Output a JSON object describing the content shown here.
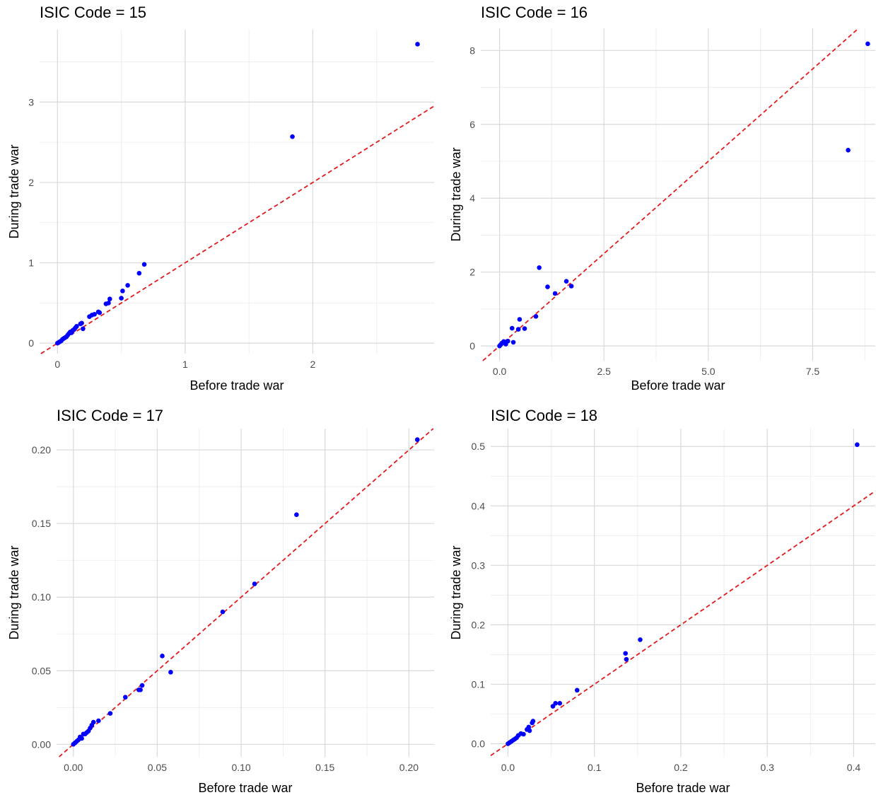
{
  "chart_data": [
    {
      "type": "scatter",
      "title": "ISIC Code =  15",
      "xlabel": "Before trade war",
      "ylabel": "During trade war",
      "xlim": [
        -0.14,
        2.95
      ],
      "ylim": [
        -0.13,
        3.9
      ],
      "xticks": [
        0,
        1,
        2
      ],
      "xtick_labels": [
        "0",
        "1",
        "2"
      ],
      "yticks": [
        0,
        1,
        2,
        3
      ],
      "ytick_labels": [
        "0",
        "1",
        "2",
        "3"
      ],
      "grid": true,
      "reference_line": "y = x",
      "colors": {
        "points": "#0000ff",
        "reference_line": "#e31a1c"
      },
      "points": [
        [
          0.0,
          0.0
        ],
        [
          0.01,
          0.01
        ],
        [
          0.02,
          0.02
        ],
        [
          0.03,
          0.03
        ],
        [
          0.04,
          0.05
        ],
        [
          0.05,
          0.06
        ],
        [
          0.06,
          0.07
        ],
        [
          0.07,
          0.08
        ],
        [
          0.08,
          0.1
        ],
        [
          0.09,
          0.12
        ],
        [
          0.1,
          0.14
        ],
        [
          0.11,
          0.13
        ],
        [
          0.12,
          0.16
        ],
        [
          0.13,
          0.17
        ],
        [
          0.14,
          0.19
        ],
        [
          0.15,
          0.21
        ],
        [
          0.18,
          0.24
        ],
        [
          0.19,
          0.25
        ],
        [
          0.2,
          0.18
        ],
        [
          0.25,
          0.33
        ],
        [
          0.27,
          0.35
        ],
        [
          0.29,
          0.36
        ],
        [
          0.32,
          0.39
        ],
        [
          0.33,
          0.38
        ],
        [
          0.38,
          0.49
        ],
        [
          0.4,
          0.5
        ],
        [
          0.41,
          0.55
        ],
        [
          0.5,
          0.56
        ],
        [
          0.51,
          0.65
        ],
        [
          0.55,
          0.72
        ],
        [
          0.64,
          0.87
        ],
        [
          0.68,
          0.98
        ],
        [
          1.84,
          2.57
        ],
        [
          2.82,
          3.72
        ]
      ]
    },
    {
      "type": "scatter",
      "title": "ISIC Code =  16",
      "xlabel": "Before trade war",
      "ylabel": "During trade war",
      "xlim": [
        -0.45,
        9.0
      ],
      "ylim": [
        -0.4,
        8.6
      ],
      "xticks": [
        0,
        2.5,
        5.0,
        7.5
      ],
      "xtick_labels": [
        "0.0",
        "2.5",
        "5.0",
        "7.5"
      ],
      "yticks": [
        0,
        2,
        4,
        6,
        8
      ],
      "ytick_labels": [
        "0",
        "2",
        "4",
        "6",
        "8"
      ],
      "grid": true,
      "reference_line": "y = x",
      "colors": {
        "points": "#0000ff",
        "reference_line": "#e31a1c"
      },
      "points": [
        [
          0.0,
          0.0
        ],
        [
          0.03,
          0.04
        ],
        [
          0.06,
          0.08
        ],
        [
          0.1,
          0.12
        ],
        [
          0.12,
          0.1
        ],
        [
          0.15,
          0.05
        ],
        [
          0.2,
          0.13
        ],
        [
          0.3,
          0.48
        ],
        [
          0.33,
          0.1
        ],
        [
          0.45,
          0.45
        ],
        [
          0.48,
          0.72
        ],
        [
          0.6,
          0.47
        ],
        [
          0.87,
          0.8
        ],
        [
          0.95,
          2.12
        ],
        [
          1.15,
          1.6
        ],
        [
          1.33,
          1.42
        ],
        [
          1.6,
          1.75
        ],
        [
          1.72,
          1.62
        ],
        [
          8.35,
          5.3
        ],
        [
          8.82,
          8.18
        ]
      ]
    },
    {
      "type": "scatter",
      "title": "ISIC Code =  17",
      "xlabel": "Before trade war",
      "ylabel": "During trade war",
      "xlim": [
        -0.01,
        0.215
      ],
      "ylim": [
        -0.0085,
        0.2145
      ],
      "xticks": [
        0,
        0.05,
        0.1,
        0.15,
        0.2
      ],
      "xtick_labels": [
        "0.00",
        "0.05",
        "0.10",
        "0.15",
        "0.20"
      ],
      "yticks": [
        0,
        0.05,
        0.1,
        0.15,
        0.2
      ],
      "ytick_labels": [
        "0.00",
        "0.05",
        "0.10",
        "0.15",
        "0.20"
      ],
      "grid": true,
      "reference_line": "y = x",
      "colors": {
        "points": "#0000ff",
        "reference_line": "#e31a1c"
      },
      "points": [
        [
          0.0,
          0.0
        ],
        [
          0.001,
          0.001
        ],
        [
          0.002,
          0.002
        ],
        [
          0.003,
          0.003
        ],
        [
          0.004,
          0.005
        ],
        [
          0.005,
          0.004
        ],
        [
          0.006,
          0.007
        ],
        [
          0.007,
          0.007
        ],
        [
          0.008,
          0.008
        ],
        [
          0.009,
          0.009
        ],
        [
          0.01,
          0.011
        ],
        [
          0.011,
          0.013
        ],
        [
          0.012,
          0.015
        ],
        [
          0.015,
          0.016
        ],
        [
          0.022,
          0.021
        ],
        [
          0.031,
          0.032
        ],
        [
          0.039,
          0.037
        ],
        [
          0.04,
          0.037
        ],
        [
          0.041,
          0.04
        ],
        [
          0.053,
          0.06
        ],
        [
          0.058,
          0.049
        ],
        [
          0.089,
          0.09
        ],
        [
          0.108,
          0.109
        ],
        [
          0.133,
          0.156
        ],
        [
          0.205,
          0.207
        ]
      ]
    },
    {
      "type": "scatter",
      "title": "ISIC Code =  18",
      "xlabel": "Before trade war",
      "ylabel": "During trade war",
      "xlim": [
        -0.02,
        0.425
      ],
      "ylim": [
        -0.022,
        0.53
      ],
      "xticks": [
        0,
        0.1,
        0.2,
        0.3,
        0.4
      ],
      "xtick_labels": [
        "0.0",
        "0.1",
        "0.2",
        "0.3",
        "0.4"
      ],
      "yticks": [
        0,
        0.1,
        0.2,
        0.3,
        0.4,
        0.5
      ],
      "ytick_labels": [
        "0.0",
        "0.1",
        "0.2",
        "0.3",
        "0.4",
        "0.5"
      ],
      "grid": true,
      "reference_line": "y = x",
      "colors": {
        "points": "#0000ff",
        "reference_line": "#e31a1c"
      },
      "points": [
        [
          0.0,
          0.0
        ],
        [
          0.002,
          0.002
        ],
        [
          0.004,
          0.004
        ],
        [
          0.006,
          0.006
        ],
        [
          0.008,
          0.008
        ],
        [
          0.01,
          0.01
        ],
        [
          0.012,
          0.014
        ],
        [
          0.015,
          0.017
        ],
        [
          0.018,
          0.016
        ],
        [
          0.022,
          0.024
        ],
        [
          0.024,
          0.028
        ],
        [
          0.025,
          0.022
        ],
        [
          0.028,
          0.035
        ],
        [
          0.029,
          0.038
        ],
        [
          0.052,
          0.063
        ],
        [
          0.055,
          0.068
        ],
        [
          0.06,
          0.068
        ],
        [
          0.08,
          0.09
        ],
        [
          0.136,
          0.152
        ],
        [
          0.137,
          0.142
        ],
        [
          0.153,
          0.175
        ],
        [
          0.404,
          0.503
        ]
      ]
    }
  ]
}
